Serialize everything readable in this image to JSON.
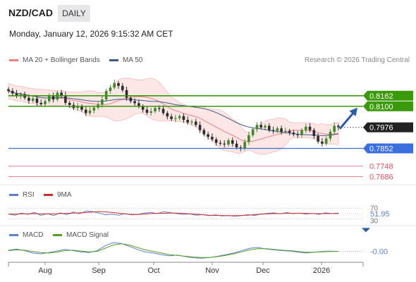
{
  "header": {
    "symbol": "NZD/CAD",
    "timeframe": "DAILY",
    "datetime": "Monday, January 12, 2026 9:15:32 AM CET"
  },
  "legend": {
    "ma20_bb": "MA 20 + Bollinger Bands",
    "ma50": "MA 50",
    "credit": "Research © 2026 Trading Central",
    "rsi": "RSI",
    "rsi_ma": "9MA",
    "macd": "MACD",
    "macd_signal": "MACD Signal"
  },
  "colors": {
    "resistance": "#3a9a0a",
    "support": "#3b6fe0",
    "minor": "#e84c5f",
    "ma20": "#f08080",
    "bands_fill": "#fde2e2",
    "ma50": "#3d5a8a",
    "candle_up": "#3a8a2a",
    "candle_down": "#2b2b2b",
    "current_tag": "#222222",
    "arrow": "#2a5fa8",
    "rsi": "#5b7fd6",
    "rsi_ma": "#d22a2a",
    "macd": "#5b7fd6",
    "macd_signal": "#56a020"
  },
  "chart_data": [
    {
      "type": "line",
      "title": "NZD/CAD",
      "x_labels": [
        "Aug",
        "Sep",
        "Oct",
        "Nov",
        "Dec",
        "2026"
      ],
      "price_levels": [
        {
          "label": "0.8162",
          "value": 0.8162,
          "kind": "resistance"
        },
        {
          "label": "0.8100",
          "value": 0.81,
          "kind": "resistance"
        },
        {
          "label": "0.7976",
          "value": 0.7976,
          "kind": "current"
        },
        {
          "label": "0.7852",
          "value": 0.7852,
          "kind": "support"
        },
        {
          "label": "0.7748",
          "value": 0.7748,
          "kind": "minor"
        },
        {
          "label": "0.7686",
          "value": 0.7686,
          "kind": "minor"
        }
      ],
      "close_series": [
        0.819,
        0.8176,
        0.816,
        0.817,
        0.815,
        0.8132,
        0.8146,
        0.812,
        0.8112,
        0.813,
        0.816,
        0.814,
        0.818,
        0.8165,
        0.812,
        0.8108,
        0.809,
        0.81,
        0.808,
        0.806,
        0.8075,
        0.8092,
        0.811,
        0.814,
        0.819,
        0.821,
        0.8236,
        0.822,
        0.8195,
        0.815,
        0.813,
        0.8118,
        0.81,
        0.808,
        0.8062,
        0.807,
        0.809,
        0.8085,
        0.806,
        0.804,
        0.8025,
        0.803,
        0.8042,
        0.802,
        0.8005,
        0.801,
        0.799,
        0.796,
        0.7935,
        0.792,
        0.7905,
        0.7885,
        0.788,
        0.7875,
        0.79,
        0.788,
        0.7858,
        0.7852,
        0.789,
        0.793,
        0.7965,
        0.799,
        0.7975,
        0.7985,
        0.796,
        0.7955,
        0.797,
        0.795,
        0.7955,
        0.7945,
        0.7935,
        0.793,
        0.796,
        0.798,
        0.796,
        0.7925,
        0.7892,
        0.788,
        0.791,
        0.795,
        0.7985,
        0.7976
      ],
      "ma_labels": [
        "MA 20 + Bollinger Bands",
        "MA 50"
      ],
      "projection": {
        "from": 0.7976,
        "to": 0.81
      }
    },
    {
      "type": "line",
      "title": "RSI",
      "series_names": [
        "RSI",
        "9MA"
      ],
      "y_ticks": [
        "70",
        "30"
      ],
      "last_value": "51.95",
      "rsi_values": [
        48,
        44,
        52,
        47,
        55,
        43,
        50,
        42,
        53,
        46,
        56,
        49,
        60,
        58,
        52,
        46,
        48,
        44,
        50,
        45,
        47,
        52,
        55,
        50,
        57,
        54,
        50,
        47,
        49,
        44,
        46,
        42,
        45,
        41,
        43,
        40,
        42,
        46,
        43,
        48,
        51,
        53,
        49,
        54,
        50,
        52,
        48,
        51,
        47,
        53,
        50,
        51.95
      ],
      "ma_values": [
        48,
        48,
        49,
        49,
        50,
        49,
        49,
        49,
        50,
        51,
        52,
        53,
        54,
        56,
        58,
        57,
        55,
        52,
        49,
        47,
        47,
        48,
        50,
        51,
        51,
        52,
        52,
        51,
        49,
        48,
        46,
        44,
        43,
        43,
        42,
        42,
        43,
        44,
        46,
        48,
        49,
        50,
        50,
        51,
        51,
        51,
        51,
        50,
        50,
        50,
        50,
        50
      ]
    },
    {
      "type": "line",
      "title": "MACD",
      "series_names": [
        "MACD",
        "MACD Signal"
      ],
      "last_value": "-0.00",
      "macd_values": [
        0.3,
        0.6,
        0.2,
        -0.4,
        -0.6,
        -0.3,
        0.1,
        0.5,
        0.2,
        -0.1,
        -0.3,
        0.2,
        1.4,
        2.2,
        2.0,
        1.3,
        0.5,
        -0.1,
        -0.4,
        -0.8,
        -1.1,
        -0.9,
        -1.3,
        -1.6,
        -1.7,
        -1.5,
        -1.2,
        -0.8,
        -0.4,
        0.2,
        0.8,
        1.0,
        0.6,
        0.4,
        0.2,
        0.1,
        -0.2,
        -0.4,
        -0.2,
        0.0,
        0.1,
        -0.0
      ],
      "signal_values": [
        0.2,
        0.4,
        0.3,
        0.0,
        -0.3,
        -0.4,
        -0.2,
        0.2,
        0.3,
        0.1,
        -0.1,
        0.0,
        0.8,
        1.6,
        1.9,
        1.6,
        1.0,
        0.4,
        0.0,
        -0.4,
        -0.8,
        -1.0,
        -1.2,
        -1.4,
        -1.5,
        -1.5,
        -1.3,
        -1.0,
        -0.6,
        -0.1,
        0.4,
        0.7,
        0.7,
        0.5,
        0.3,
        0.2,
        0.0,
        -0.2,
        -0.2,
        -0.1,
        0.0,
        -0.0
      ]
    }
  ]
}
